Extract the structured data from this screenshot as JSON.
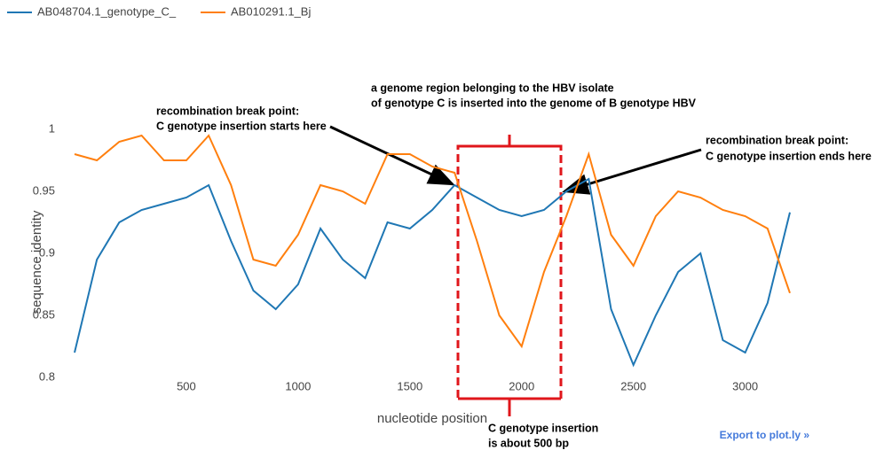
{
  "chart_data": {
    "type": "line",
    "xlabel": "nucleotide position",
    "ylabel": "sequence identity",
    "x": [
      0,
      100,
      200,
      300,
      400,
      500,
      600,
      700,
      800,
      900,
      1000,
      1100,
      1200,
      1300,
      1400,
      1500,
      1600,
      1700,
      1800,
      1900,
      2000,
      2100,
      2200,
      2300,
      2400,
      2500,
      2600,
      2700,
      2800,
      2900,
      3000,
      3100,
      3200
    ],
    "series": [
      {
        "name": "AB048704.1_genotype_C_",
        "color": "#1f77b4",
        "values": [
          0.82,
          0.895,
          0.925,
          0.935,
          0.94,
          0.945,
          0.955,
          0.91,
          0.87,
          0.855,
          0.875,
          0.92,
          0.895,
          0.88,
          0.925,
          0.92,
          0.935,
          0.955,
          0.945,
          0.935,
          0.93,
          0.935,
          0.95,
          0.96,
          0.855,
          0.81,
          0.85,
          0.885,
          0.9,
          0.83,
          0.82,
          0.86,
          0.933
        ]
      },
      {
        "name": "AB010291.1_Bj",
        "color": "#ff7f0e",
        "values": [
          0.98,
          0.975,
          0.99,
          0.995,
          0.975,
          0.975,
          0.995,
          0.955,
          0.895,
          0.89,
          0.915,
          0.955,
          0.95,
          0.94,
          0.98,
          0.98,
          0.97,
          0.965,
          0.91,
          0.85,
          0.825,
          0.885,
          0.93,
          0.98,
          0.915,
          0.89,
          0.93,
          0.95,
          0.945,
          0.935,
          0.93,
          0.92,
          0.868
        ]
      }
    ],
    "xlim": [
      0,
      3200
    ],
    "xticks": [
      500,
      1000,
      1500,
      2000,
      2500,
      3000
    ],
    "ylim": [
      0.8,
      1.0
    ],
    "yticks": [
      0.8,
      0.85,
      0.9,
      0.95,
      1
    ],
    "grid": false,
    "annotations": [
      {
        "lines": [
          "a genome region belonging to the HBV isolate",
          "of genotype C is inserted into the genome of B genotype HBV"
        ]
      },
      {
        "lines": [
          "recombination break point:",
          "C genotype insertion starts here"
        ]
      },
      {
        "lines": [
          "recombination break point:",
          "C genotype insertion ends here"
        ]
      },
      {
        "lines": [
          "C genotype insertion",
          "is about 500  bp"
        ]
      }
    ],
    "export_link": "Export to plot.ly »"
  }
}
